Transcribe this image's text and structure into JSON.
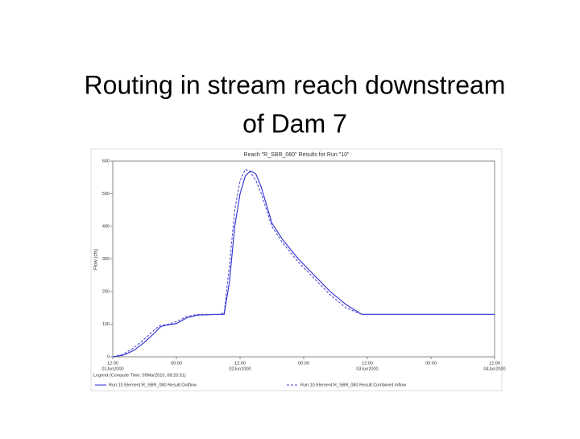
{
  "slide_title": [
    "Routing in stream reach downstream",
    "of Dam 7"
  ],
  "chart_data": {
    "type": "line",
    "title": "Reach \"R_SBR_080\" Results for Run \"10\"",
    "y_label": "Flow (cfs)",
    "x": [
      0,
      2,
      4,
      6,
      8,
      9,
      10,
      12,
      14,
      16,
      20,
      21,
      22,
      23,
      24,
      25,
      26,
      27,
      28,
      30,
      32,
      35,
      38,
      41,
      44,
      47,
      48,
      60,
      72
    ],
    "series": [
      {
        "name": "Run:10 Element:R_SBR_080 Result:Outflow",
        "color": "#2a2ad0",
        "dashed": false,
        "values": [
          0,
          5,
          20,
          45,
          75,
          92,
          97,
          102,
          120,
          128,
          130,
          130,
          230,
          400,
          500,
          555,
          570,
          560,
          520,
          410,
          360,
          300,
          250,
          200,
          160,
          130,
          130,
          130,
          130
        ]
      },
      {
        "name": "Run:10 Element:R_SBR_080 Result:Combined Inflow",
        "color": "#4a4ad8",
        "dashed": true,
        "values": [
          0,
          8,
          28,
          55,
          85,
          97,
          98,
          108,
          124,
          130,
          130,
          135,
          280,
          450,
          540,
          575,
          565,
          540,
          500,
          400,
          350,
          290,
          240,
          190,
          150,
          130,
          130,
          130,
          130
        ]
      }
    ],
    "xlim": [
      0,
      72
    ],
    "xticks": [
      {
        "value": 0,
        "label": "12:00"
      },
      {
        "value": 12,
        "label": "00:00"
      },
      {
        "value": 24,
        "label": "12:00"
      },
      {
        "value": 36,
        "label": "00:00"
      },
      {
        "value": 48,
        "label": "12:00"
      },
      {
        "value": 60,
        "label": "00:00"
      },
      {
        "value": 72,
        "label": "12:00"
      }
    ],
    "x_date_labels": [
      {
        "value": 0,
        "label": "01Jun2000"
      },
      {
        "value": 24,
        "label": "02Jun2000"
      },
      {
        "value": 48,
        "label": "03Jun2000"
      },
      {
        "value": 72,
        "label": "04Jun2000"
      }
    ],
    "ylim": [
      0,
      600
    ],
    "yticks": [
      0,
      100,
      200,
      300,
      400,
      500,
      600
    ],
    "grid": false,
    "legend_title": "Legend (Compute Time: 09Mar2010, 08:20:51)"
  }
}
